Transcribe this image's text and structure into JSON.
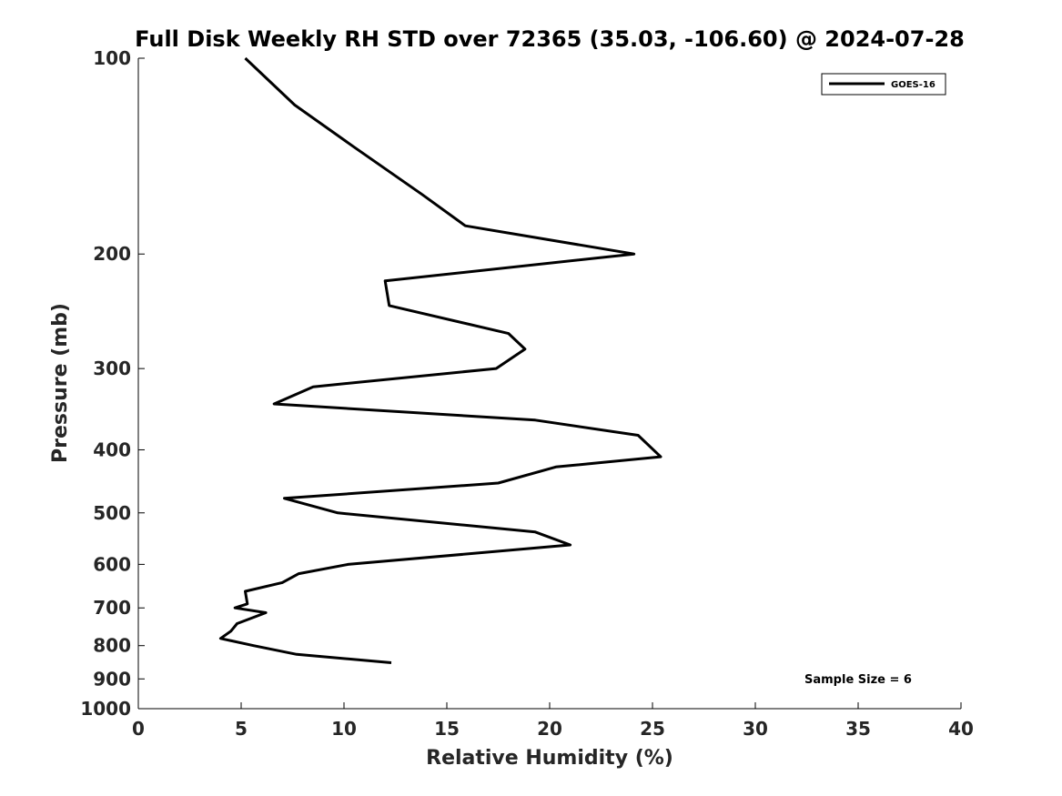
{
  "chart_data": {
    "type": "line",
    "title": "Full Disk Weekly RH STD over 72365 (35.03, -106.60) @ 2024-07-28",
    "xlabel": "Relative Humidity (%)",
    "ylabel": "Pressure (mb)",
    "xlim": [
      0,
      40
    ],
    "ylim": [
      1000,
      100
    ],
    "yscale": "log",
    "x_ticks": [
      0,
      5,
      10,
      15,
      20,
      25,
      30,
      35,
      40
    ],
    "y_ticks": [
      100,
      200,
      300,
      400,
      500,
      600,
      700,
      800,
      900,
      1000
    ],
    "grid": false,
    "legend_position": "top-right",
    "annotation": "Sample Size = 6",
    "series": [
      {
        "name": "GOES-16",
        "color": "#000000",
        "points": [
          {
            "x": 5.2,
            "y": 100
          },
          {
            "x": 7.6,
            "y": 118
          },
          {
            "x": 10.5,
            "y": 137
          },
          {
            "x": 13.8,
            "y": 162
          },
          {
            "x": 15.9,
            "y": 181
          },
          {
            "x": 24.1,
            "y": 200
          },
          {
            "x": 12.0,
            "y": 220
          },
          {
            "x": 12.2,
            "y": 240
          },
          {
            "x": 18.0,
            "y": 265
          },
          {
            "x": 18.8,
            "y": 280
          },
          {
            "x": 17.4,
            "y": 300
          },
          {
            "x": 8.5,
            "y": 320
          },
          {
            "x": 6.6,
            "y": 340
          },
          {
            "x": 19.3,
            "y": 360
          },
          {
            "x": 24.3,
            "y": 380
          },
          {
            "x": 25.4,
            "y": 410
          },
          {
            "x": 20.3,
            "y": 425
          },
          {
            "x": 17.5,
            "y": 450
          },
          {
            "x": 7.1,
            "y": 475
          },
          {
            "x": 9.7,
            "y": 500
          },
          {
            "x": 19.3,
            "y": 535
          },
          {
            "x": 21.0,
            "y": 560
          },
          {
            "x": 10.2,
            "y": 600
          },
          {
            "x": 7.8,
            "y": 620
          },
          {
            "x": 7.0,
            "y": 640
          },
          {
            "x": 5.2,
            "y": 660
          },
          {
            "x": 5.3,
            "y": 690
          },
          {
            "x": 4.7,
            "y": 700
          },
          {
            "x": 6.2,
            "y": 712
          },
          {
            "x": 4.8,
            "y": 740
          },
          {
            "x": 4.5,
            "y": 760
          },
          {
            "x": 4.0,
            "y": 780
          },
          {
            "x": 5.6,
            "y": 800
          },
          {
            "x": 7.7,
            "y": 825
          },
          {
            "x": 12.3,
            "y": 850
          }
        ]
      }
    ]
  }
}
